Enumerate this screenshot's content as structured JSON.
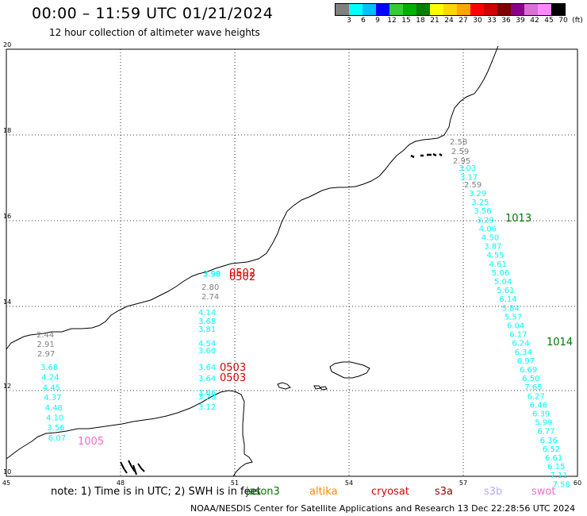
{
  "title": "00:00 – 11:59 UTC 01/21/2024",
  "subtitle": "12 hour collection of altimeter wave heights",
  "legend": {
    "colors": [
      "#808080",
      "#00ffff",
      "#00bfff",
      "#0000ff",
      "#32cd32",
      "#00b000",
      "#008000",
      "#ffff00",
      "#ffd700",
      "#ffa500",
      "#ff0000",
      "#cc0000",
      "#800000",
      "#8b008b",
      "#da70d6",
      "#ff88ff",
      "#000000"
    ],
    "labels": [
      "3",
      "6",
      "9",
      "12",
      "15",
      "18",
      "21",
      "24",
      "27",
      "30",
      "33",
      "36",
      "39",
      "42",
      "45",
      "70",
      "(ft)"
    ]
  },
  "axes": {
    "x_ticks": [
      "45",
      "48",
      "51",
      "54",
      "57",
      "60"
    ],
    "y_ticks": [
      "20",
      "18",
      "16",
      "14",
      "12",
      "10"
    ]
  },
  "tracks": [
    {
      "color": "#808080",
      "values": [
        "2.44",
        "2.91",
        "2.97"
      ]
    },
    {
      "color": "#00ffff",
      "values": [
        "3.68",
        "4.24",
        "4.45",
        "4.37",
        "4.48",
        "4.10",
        "3.56",
        "6.07"
      ]
    },
    {
      "color": "#808080",
      "values": [
        "2.80",
        "2.74"
      ]
    },
    {
      "color": "#00ffff",
      "values": [
        "3.98",
        "3.99"
      ]
    },
    {
      "color": "#00ffff",
      "values": [
        "4.14",
        "3.68",
        "3.81",
        "4.54",
        "3.60",
        "3.64",
        "3.64",
        "3.66",
        "3.23",
        "3.12"
      ]
    },
    {
      "color": "#808080",
      "values": [
        "2.58",
        "2.59",
        "2.95"
      ]
    },
    {
      "color": "#00ffff",
      "values": [
        "3.03",
        "3.17"
      ]
    },
    {
      "color": "#808080",
      "values": [
        "2.59"
      ]
    },
    {
      "color": "#00ffff",
      "values": [
        "3.29",
        "3.25",
        "3.56",
        "3.29",
        "4.06",
        "4.50",
        "3.87",
        "4.55",
        "4.61",
        "5.06",
        "5.04",
        "5.61",
        "6.14",
        "5.84",
        "5.57",
        "6.04",
        "6.17",
        "6.24",
        "6.34",
        "6.97",
        "6.69",
        "6.50",
        "7.65",
        "6.27",
        "6.46",
        "6.39",
        "5.99",
        "6.77",
        "6.36",
        "6.52",
        "6.61",
        "6.15",
        "7.11",
        "7.58"
      ]
    }
  ],
  "ids": [
    {
      "text": "0502",
      "color": "#dd0000"
    },
    {
      "text": "0502",
      "color": "#dd0000"
    },
    {
      "text": "0503",
      "color": "#dd0000"
    },
    {
      "text": "0503",
      "color": "#dd0000"
    },
    {
      "text": "1013",
      "color": "#007700"
    },
    {
      "text": "1014",
      "color": "#007700"
    },
    {
      "text": "1005",
      "color": "#ff66cc"
    }
  ],
  "note": "note: 1) Time is in UTC; 2) SWH is in feet",
  "satellites": [
    {
      "name": "jason3",
      "color": "#007700"
    },
    {
      "name": "altika",
      "color": "#ff8800"
    },
    {
      "name": "cryosat",
      "color": "#dd0000"
    },
    {
      "name": "s3a",
      "color": "#990000"
    },
    {
      "name": "s3b",
      "color": "#bbaaee"
    },
    {
      "name": "swot",
      "color": "#ff66cc"
    }
  ],
  "footer": "NOAA/NESDIS Center for Satellite Applications and Research   13 Dec 22:28:56 UTC 2024"
}
